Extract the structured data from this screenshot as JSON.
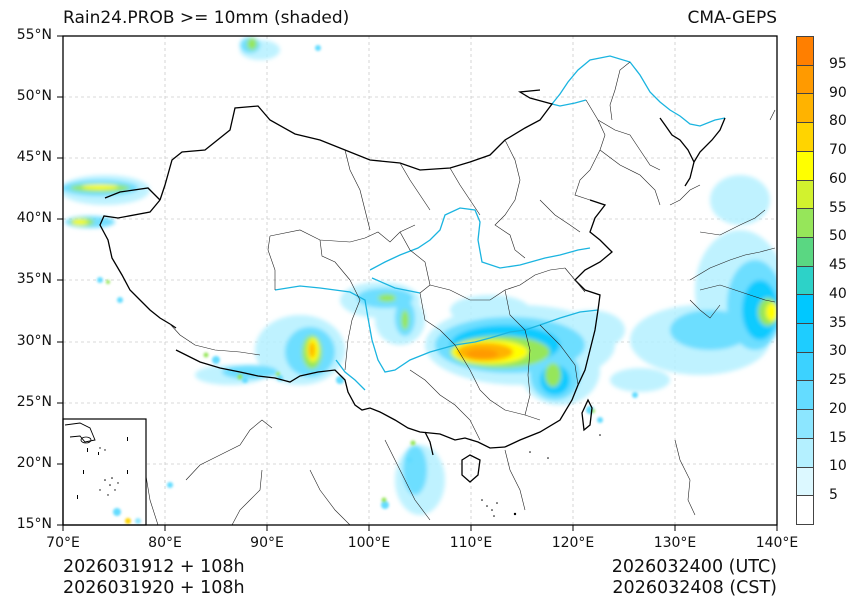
{
  "header": {
    "title": "Rain24.PROB >= 10mm (shaded)",
    "model": "CMA-GEPS"
  },
  "axes": {
    "lat_ticks": [
      "55°N",
      "50°N",
      "45°N",
      "40°N",
      "35°N",
      "30°N",
      "25°N",
      "20°N",
      "15°N"
    ],
    "lon_ticks": [
      "70°E",
      "80°E",
      "90°E",
      "100°E",
      "110°E",
      "120°E",
      "130°E",
      "140°E"
    ],
    "lon_range": [
      70,
      140
    ],
    "lat_range": [
      15,
      55
    ]
  },
  "footer": {
    "init_utc": "2026031912 + 108h",
    "init_cst": "2026031920 + 108h",
    "valid_utc": "2026032400 (UTC)",
    "valid_cst": "2026032408 (CST)"
  },
  "colorbar": {
    "labels": [
      "95",
      "90",
      "80",
      "70",
      "60",
      "55",
      "50",
      "45",
      "40",
      "35",
      "30",
      "25",
      "20",
      "15",
      "10",
      "5"
    ],
    "colors": [
      "#ff7f00",
      "#ff9a00",
      "#ffb300",
      "#ffd400",
      "#ffff00",
      "#d2f22e",
      "#96e65a",
      "#5ad782",
      "#2dd2c8",
      "#00c8ff",
      "#1ecdff",
      "#3cd2ff",
      "#64dcff",
      "#8ce6ff",
      "#b4f0ff",
      "#dcf8ff",
      "#ffffff"
    ]
  }
}
